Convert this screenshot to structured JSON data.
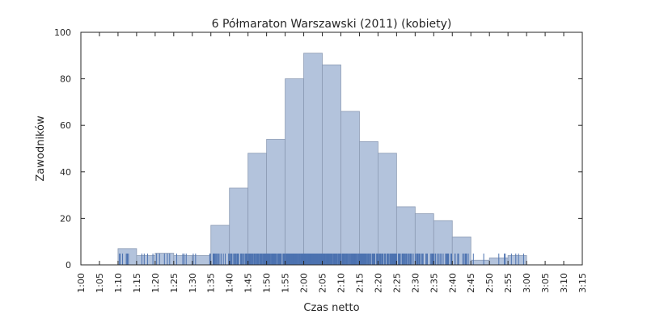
{
  "chart_data": {
    "type": "bar",
    "title": "6 Półmaraton Warszawski (2011) (kobiety)",
    "xlabel": "Czas netto",
    "ylabel": "Zawodników",
    "ylim": [
      0,
      100
    ],
    "y_ticks": [
      0,
      20,
      40,
      60,
      80,
      100
    ],
    "xlim_minutes": [
      60,
      195
    ],
    "x_ticks": [
      {
        "minutes": 60,
        "label": "1:00"
      },
      {
        "minutes": 65,
        "label": "1:05"
      },
      {
        "minutes": 70,
        "label": "1:10"
      },
      {
        "minutes": 75,
        "label": "1:15"
      },
      {
        "minutes": 80,
        "label": "1:20"
      },
      {
        "minutes": 85,
        "label": "1:25"
      },
      {
        "minutes": 90,
        "label": "1:30"
      },
      {
        "minutes": 95,
        "label": "1:35"
      },
      {
        "minutes": 100,
        "label": "1:40"
      },
      {
        "minutes": 105,
        "label": "1:45"
      },
      {
        "minutes": 110,
        "label": "1:50"
      },
      {
        "minutes": 115,
        "label": "1:55"
      },
      {
        "minutes": 120,
        "label": "2:00"
      },
      {
        "minutes": 125,
        "label": "2:05"
      },
      {
        "minutes": 130,
        "label": "2:10"
      },
      {
        "minutes": 135,
        "label": "2:15"
      },
      {
        "minutes": 140,
        "label": "2:20"
      },
      {
        "minutes": 145,
        "label": "2:25"
      },
      {
        "minutes": 150,
        "label": "2:30"
      },
      {
        "minutes": 155,
        "label": "2:35"
      },
      {
        "minutes": 160,
        "label": "2:40"
      },
      {
        "minutes": 165,
        "label": "2:45"
      },
      {
        "minutes": 170,
        "label": "2:50"
      },
      {
        "minutes": 175,
        "label": "2:55"
      },
      {
        "minutes": 180,
        "label": "3:00"
      },
      {
        "minutes": 185,
        "label": "3:05"
      },
      {
        "minutes": 190,
        "label": "3:10"
      },
      {
        "minutes": 195,
        "label": "3:15"
      }
    ],
    "bins": [
      {
        "start": 70,
        "end": 75,
        "value": 7
      },
      {
        "start": 75,
        "end": 80,
        "value": 4
      },
      {
        "start": 80,
        "end": 85,
        "value": 5
      },
      {
        "start": 85,
        "end": 90,
        "value": 4
      },
      {
        "start": 90,
        "end": 95,
        "value": 4
      },
      {
        "start": 95,
        "end": 100,
        "value": 17
      },
      {
        "start": 100,
        "end": 105,
        "value": 33
      },
      {
        "start": 105,
        "end": 110,
        "value": 48
      },
      {
        "start": 110,
        "end": 115,
        "value": 54
      },
      {
        "start": 115,
        "end": 120,
        "value": 80
      },
      {
        "start": 120,
        "end": 125,
        "value": 91
      },
      {
        "start": 125,
        "end": 130,
        "value": 86
      },
      {
        "start": 130,
        "end": 135,
        "value": 66
      },
      {
        "start": 135,
        "end": 140,
        "value": 53
      },
      {
        "start": 140,
        "end": 145,
        "value": 48
      },
      {
        "start": 145,
        "end": 150,
        "value": 25
      },
      {
        "start": 150,
        "end": 155,
        "value": 22
      },
      {
        "start": 155,
        "end": 160,
        "value": 19
      },
      {
        "start": 160,
        "end": 165,
        "value": 12
      },
      {
        "start": 165,
        "end": 170,
        "value": 2
      },
      {
        "start": 170,
        "end": 175,
        "value": 3
      },
      {
        "start": 175,
        "end": 180,
        "value": 4
      }
    ],
    "rug_color": "#4c72b0",
    "bar_color": "#b3c3dc",
    "grid": false
  }
}
